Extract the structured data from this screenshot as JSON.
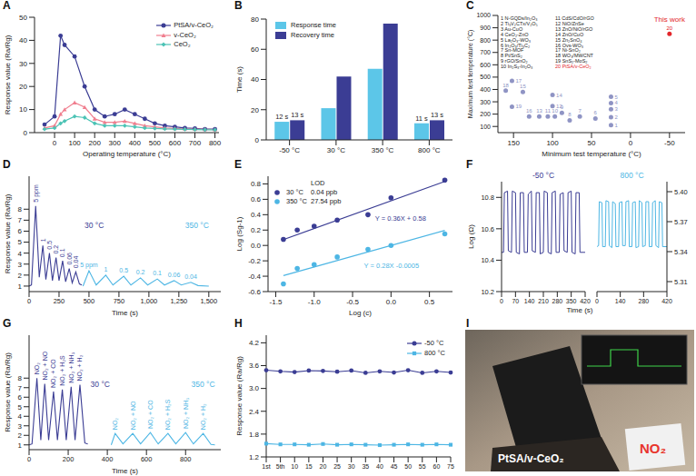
{
  "chart_data": [
    {
      "panel": "A",
      "type": "line",
      "x_label": "Operating temperature (°C)",
      "y_label": "Response value (Ra/Rg)",
      "x": [
        -50,
        0,
        30,
        50,
        100,
        150,
        200,
        250,
        300,
        350,
        400,
        450,
        500,
        550,
        600,
        650,
        700,
        750,
        800
      ],
      "xlim": [
        -100,
        820
      ],
      "xticks": [
        0,
        100,
        200,
        300,
        400,
        500,
        600,
        700,
        800
      ],
      "ylim": [
        0,
        50
      ],
      "yticks": [
        0,
        10,
        20,
        30,
        40,
        50
      ],
      "legend": "upper right",
      "series": [
        {
          "name": "PtSA/v-CeO₂",
          "color": "#3b3d94",
          "marker": "circle",
          "values": [
            3.5,
            7,
            42,
            38,
            33,
            20,
            10,
            7,
            8,
            10,
            8,
            6,
            4,
            3,
            2.5,
            2,
            1.8,
            1.5,
            1.5
          ]
        },
        {
          "name": "v-CeO₂",
          "color": "#f07f8f",
          "marker": "triangle",
          "values": [
            2,
            3,
            8,
            10,
            13,
            11,
            6,
            4.5,
            4.5,
            5,
            4,
            3,
            2.5,
            2,
            1.8,
            1.6,
            1.5,
            1.4,
            1.3
          ]
        },
        {
          "name": "CeO₂",
          "color": "#4cc3b5",
          "marker": "diamond",
          "values": [
            1.5,
            2,
            4,
            5,
            7,
            6.5,
            4,
            3,
            3,
            3,
            2.5,
            2,
            1.8,
            1.6,
            1.5,
            1.4,
            1.3,
            1.25,
            1.2
          ]
        }
      ]
    },
    {
      "panel": "B",
      "type": "bar",
      "y_label": "Time (s)",
      "categories": [
        "-50 °C",
        "30 °C",
        "350 °C",
        "800 °C"
      ],
      "ylim": [
        0,
        80
      ],
      "yticks": [
        0,
        20,
        40,
        60,
        80
      ],
      "legend": "upper left",
      "data_labels": true,
      "series": [
        {
          "name": "Response time",
          "color": "#5cc6e8",
          "values": [
            12,
            21,
            47,
            11
          ],
          "value_labels": [
            "12 s",
            null,
            null,
            "11 s"
          ]
        },
        {
          "name": "Recovery time",
          "color": "#3b3d94",
          "values": [
            13,
            42,
            77,
            13
          ],
          "value_labels": [
            "13 s",
            null,
            null,
            "13 s"
          ]
        }
      ]
    },
    {
      "panel": "C",
      "type": "scatter",
      "x_label": "Minimum test temperature (°C)",
      "y_label": "Maximum test temperature (°C)",
      "xlim": [
        170,
        -70
      ],
      "xticks": [
        150,
        100,
        50,
        0,
        -50
      ],
      "ylim": [
        50,
        1000
      ],
      "yticks": [
        100,
        200,
        300,
        400,
        500,
        600,
        700,
        800,
        900,
        1000
      ],
      "annotation": {
        "id": 20,
        "text": "This work"
      },
      "points": [
        {
          "id": 1,
          "x": 25,
          "y": 110,
          "name": "N-GQDs/In₂O₃"
        },
        {
          "id": 2,
          "x": 25,
          "y": 175,
          "name": "Ti₃V₂CTx/V₂O₅"
        },
        {
          "id": 3,
          "x": 25,
          "y": 240,
          "name": "Au-CuO"
        },
        {
          "id": 4,
          "x": 25,
          "y": 290,
          "name": "CeO₂-ZnO"
        },
        {
          "id": 5,
          "x": 25,
          "y": 340,
          "name": "La₂O₃-WO₃"
        },
        {
          "id": 6,
          "x": 45,
          "y": 165,
          "name": "In₂O₃/Ti₃C₂"
        },
        {
          "id": 7,
          "x": 65,
          "y": 180,
          "name": "Sn-MOF"
        },
        {
          "id": 8,
          "x": 78,
          "y": 150,
          "name": "Pt/SnS₂"
        },
        {
          "id": 9,
          "x": 88,
          "y": 210,
          "name": "rGO/SnO₂"
        },
        {
          "id": 10,
          "x": 97,
          "y": 180,
          "name": "In₂S₃-In₂O₃"
        },
        {
          "id": 11,
          "x": 106,
          "y": 180,
          "name": "CdS/CdO/rGO"
        },
        {
          "id": 12,
          "x": 100,
          "y": 265,
          "name": "NiO/ZnSe"
        },
        {
          "id": 13,
          "x": 117,
          "y": 180,
          "name": "ZnO/NiO/rGO"
        },
        {
          "id": 14,
          "x": 100,
          "y": 355,
          "name": "ZnO/CuO"
        },
        {
          "id": 15,
          "x": 138,
          "y": 380,
          "name": "Zn₂SnO₄"
        },
        {
          "id": 16,
          "x": 130,
          "y": 180,
          "name": "Ovs-WO₃"
        },
        {
          "id": 17,
          "x": 152,
          "y": 470,
          "name": "Ni-SnO₂"
        },
        {
          "id": 18,
          "x": 160,
          "y": 390,
          "name": "WO₃/MWCNT"
        },
        {
          "id": 19,
          "x": 152,
          "y": 260,
          "name": "SnS₂-MoS₂"
        },
        {
          "id": 20,
          "x": -50,
          "y": 850,
          "name": "PtSA/v-CeO₂"
        }
      ],
      "colors": [
        "#8f94c4",
        "#8f94c4",
        "#8f94c4",
        "#8f94c4",
        "#8f94c4",
        "#8f94c4",
        "#8f94c4",
        "#8f94c4",
        "#8f94c4",
        "#8f94c4",
        "#8f94c4",
        "#8f94c4",
        "#8f94c4",
        "#8f94c4",
        "#8f94c4",
        "#8f94c4",
        "#8f94c4",
        "#8f94c4",
        "#8f94c4",
        "#e3262b"
      ]
    },
    {
      "panel": "D",
      "type": "line",
      "x_label": "Time (s)",
      "y_label": "Response value (Ra/Rg)",
      "x": [
        0,
        20,
        55,
        85,
        115,
        140,
        170,
        195,
        225,
        250,
        280,
        305,
        335,
        360,
        390,
        420,
        440,
        450,
        500,
        560,
        640,
        700,
        790,
        850,
        930,
        990,
        1070,
        1130,
        1210,
        1270,
        1350,
        1410,
        1500
      ],
      "xlim": [
        0,
        1600
      ],
      "xticks": [
        0,
        250,
        500,
        750,
        {
          "value": 1000,
          "label": "1,000"
        },
        {
          "value": 1250,
          "label": "1,250"
        },
        {
          "value": 1500,
          "label": "1,500"
        }
      ],
      "ylim": [
        0.5,
        11
      ],
      "yticks": [
        1,
        2,
        3,
        4,
        5,
        6,
        7,
        8
      ],
      "series": [
        {
          "name": "30 °C",
          "color": "#3b3d94",
          "annotations": [
            "5 ppm",
            "1",
            "0.5",
            "0.2",
            "0.1",
            "0.06",
            "0.04"
          ],
          "values": [
            1.0,
            1.1,
            8.3,
            1.8,
            4.7,
            1.6,
            4.0,
            1.5,
            3.6,
            1.5,
            3.3,
            1.4,
            2.6,
            1.3,
            2.3,
            1.2,
            1.1,
            null,
            null,
            null,
            null,
            null,
            null,
            null,
            null,
            null,
            null,
            null,
            null,
            null,
            null,
            null,
            null
          ]
        },
        {
          "name": "350 °C",
          "color": "#4db6e4",
          "annotations": [
            "5 ppm",
            "1",
            "0.5",
            "0.2",
            "0.1",
            "0.06",
            "0.04"
          ],
          "values": [
            null,
            null,
            null,
            null,
            null,
            null,
            null,
            null,
            null,
            null,
            null,
            null,
            null,
            null,
            null,
            null,
            null,
            1.0,
            2.4,
            1.1,
            2.0,
            1.1,
            1.9,
            1.1,
            1.75,
            1.1,
            1.65,
            1.1,
            1.5,
            1.1,
            1.35,
            1.05,
            1.0
          ]
        }
      ]
    },
    {
      "panel": "E",
      "type": "scatter",
      "x_label": "Log (c)",
      "y_label": "Log (Sg-1)",
      "xlim": [
        -1.6,
        0.8
      ],
      "xticks": [
        -1.5,
        {
          "value": -1,
          "label": "-1.0"
        },
        -0.5,
        {
          "value": 0,
          "label": "0.0"
        },
        0.5
      ],
      "ylim": [
        -0.6,
        0.9
      ],
      "yticks": [
        -0.6,
        -0.4,
        -0.2,
        {
          "value": 0,
          "label": "0.0"
        },
        0.2,
        0.4,
        0.6,
        0.8
      ],
      "legend": "upper left",
      "legend_title": "LOD",
      "series": [
        {
          "name": "30 °C",
          "color": "#3b3d94",
          "marker": "circle",
          "lod": "0.04 ppb",
          "x": [
            -1.4,
            -1.22,
            -1,
            -0.7,
            -0.3,
            0,
            0.7
          ],
          "values": [
            0.08,
            0.2,
            0.25,
            0.33,
            0.4,
            0.62,
            0.85
          ],
          "fit": {
            "slope": 0.36,
            "intercept": 0.58,
            "label": "Y = 0.36X + 0.58"
          }
        },
        {
          "name": "350 °C",
          "color": "#4db6e4",
          "marker": "circle",
          "lod": "27.54 ppb",
          "x": [
            -1.4,
            -1.22,
            -1,
            -0.7,
            -0.3,
            0,
            0.7
          ],
          "values": [
            -0.5,
            -0.3,
            -0.25,
            -0.15,
            -0.05,
            0,
            0.15
          ],
          "fit": {
            "slope": 0.28,
            "intercept": -0.0005,
            "label": "Y = 0.28X -0.0005"
          }
        }
      ]
    },
    {
      "panel": "F",
      "type": "line",
      "x_label": "Time (s)",
      "subplots": [
        {
          "title": "-50 °C",
          "y_label": "Log (Ω)",
          "color": "#3b3d94",
          "x": [
            0,
            10,
            14,
            30,
            34,
            50,
            54,
            70,
            74,
            90,
            94,
            110,
            114,
            130,
            134,
            150,
            154,
            170,
            174,
            190,
            194,
            210,
            214,
            230,
            234,
            250,
            254,
            270,
            274,
            290,
            294,
            310,
            314,
            330,
            334,
            350,
            354,
            370,
            374,
            390,
            394,
            420
          ],
          "values": [
            10.45,
            10.45,
            10.83,
            10.84,
            10.46,
            10.45,
            10.84,
            10.83,
            10.45,
            10.44,
            10.83,
            10.83,
            10.45,
            10.45,
            10.82,
            10.84,
            10.46,
            10.45,
            10.83,
            10.83,
            10.44,
            10.45,
            10.84,
            10.83,
            10.45,
            10.44,
            10.83,
            10.84,
            10.45,
            10.45,
            10.82,
            10.83,
            10.46,
            10.45,
            10.83,
            10.84,
            10.45,
            10.44,
            10.83,
            10.83,
            10.45,
            10.45
          ],
          "xlim": [
            0,
            420
          ],
          "xticks": [
            0,
            70,
            140,
            210,
            280,
            350,
            420
          ],
          "ylim": [
            10.2,
            10.9
          ],
          "yticks": [
            10.2,
            10.4,
            10.6,
            10.8
          ]
        },
        {
          "title": "800 °C",
          "color": "#4db6e4",
          "x": [
            0,
            10,
            14,
            30,
            34,
            50,
            54,
            70,
            74,
            90,
            94,
            110,
            114,
            130,
            134,
            150,
            154,
            170,
            174,
            190,
            194,
            210,
            214,
            230,
            234,
            250,
            254,
            270,
            274,
            290,
            294,
            310,
            314,
            330,
            334,
            350,
            354,
            370,
            374,
            390,
            394,
            420
          ],
          "values": [
            5.345,
            5.346,
            5.39,
            5.389,
            5.345,
            5.345,
            5.391,
            5.39,
            5.346,
            5.344,
            5.39,
            5.388,
            5.345,
            5.345,
            5.389,
            5.39,
            5.346,
            5.346,
            5.39,
            5.391,
            5.345,
            5.345,
            5.389,
            5.39,
            5.344,
            5.345,
            5.391,
            5.389,
            5.345,
            5.346,
            5.39,
            5.39,
            5.345,
            5.345,
            5.389,
            5.391,
            5.346,
            5.344,
            5.39,
            5.389,
            5.345,
            5.345
          ],
          "xlim": [
            0,
            420
          ],
          "xticks": [
            0,
            140,
            280,
            420
          ],
          "ylim": [
            5.3,
            5.41
          ],
          "yticks": [
            5.31,
            5.34,
            5.37,
            {
              "value": 5.4,
              "label": "5.40"
            }
          ]
        }
      ]
    },
    {
      "panel": "G",
      "type": "line",
      "x_label": "Time (s)",
      "y_label": "Response value (Ra/Rg)",
      "x": [
        0,
        15,
        40,
        60,
        80,
        100,
        125,
        145,
        170,
        190,
        215,
        235,
        260,
        285,
        300,
        420,
        440,
        480,
        530,
        570,
        620,
        660,
        710,
        750,
        800,
        840,
        890,
        930,
        950
      ],
      "xlim": [
        0,
        980
      ],
      "xticks": [
        0,
        200,
        400,
        600,
        800
      ],
      "ylim": [
        0.5,
        12.5
      ],
      "yticks": [
        1,
        2,
        3,
        4,
        5,
        6,
        7,
        8
      ],
      "series": [
        {
          "name": "30 °C",
          "color": "#3b3d94",
          "annotations": [
            "NO₂",
            "NO₂ + NO",
            "NO₂ + CO",
            "NO₂ + H₂S",
            "NO₂ + NH₃",
            "NO₂ + H₂"
          ],
          "values": [
            1,
            1.1,
            8,
            1.5,
            7.4,
            1.5,
            6.6,
            1.5,
            6.8,
            1.5,
            7.1,
            1.5,
            7.3,
            1.2,
            1.1,
            null,
            null,
            null,
            null,
            null,
            null,
            null,
            null,
            null,
            null,
            null,
            null,
            null,
            null
          ]
        },
        {
          "name": "350 °C",
          "color": "#4db6e4",
          "annotations": [
            "NO₂",
            "NO₂ + NO",
            "NO₂ + CO",
            "NO₂ + H₂S",
            "NO₂ + NH₃",
            "NO₂ + H₂"
          ],
          "values": [
            null,
            null,
            null,
            null,
            null,
            null,
            null,
            null,
            null,
            null,
            null,
            null,
            null,
            null,
            null,
            1,
            2.2,
            1.1,
            2.2,
            1.1,
            2.3,
            1.1,
            2.2,
            1.1,
            2.3,
            1.1,
            2.2,
            1.05,
            1
          ]
        }
      ]
    },
    {
      "panel": "H",
      "type": "line",
      "y_label": "Response value (Ra/Rg)",
      "categories": [
        "1st",
        "5th",
        "10",
        "15",
        "20",
        "25",
        "30",
        "35",
        "40",
        "45",
        "50",
        "55",
        "60",
        "75"
      ],
      "ylim": [
        1.2,
        4.4
      ],
      "yticks": [
        1.2,
        1.8,
        2.4,
        {
          "value": 3,
          "label": "3.0"
        },
        3.6,
        4.2
      ],
      "legend": "upper right",
      "series": [
        {
          "name": "-50 °C",
          "color": "#3b3d94",
          "marker": "circle",
          "values": [
            3.48,
            3.45,
            3.43,
            3.47,
            3.46,
            3.44,
            3.47,
            3.41,
            3.45,
            3.42,
            3.48,
            3.41,
            3.45,
            3.42
          ]
        },
        {
          "name": "800 °C",
          "color": "#4db6e4",
          "marker": "square",
          "values": [
            1.55,
            1.53,
            1.53,
            1.52,
            1.54,
            1.52,
            1.53,
            1.52,
            1.51,
            1.52,
            1.53,
            1.52,
            1.53,
            1.52
          ]
        }
      ]
    },
    {
      "panel": "I",
      "type": "image",
      "labels": [
        {
          "text": "PtSA/v-CeO₂",
          "color": "#ffffff"
        },
        {
          "text": "NO₂",
          "color": "#e8352c"
        }
      ]
    }
  ]
}
